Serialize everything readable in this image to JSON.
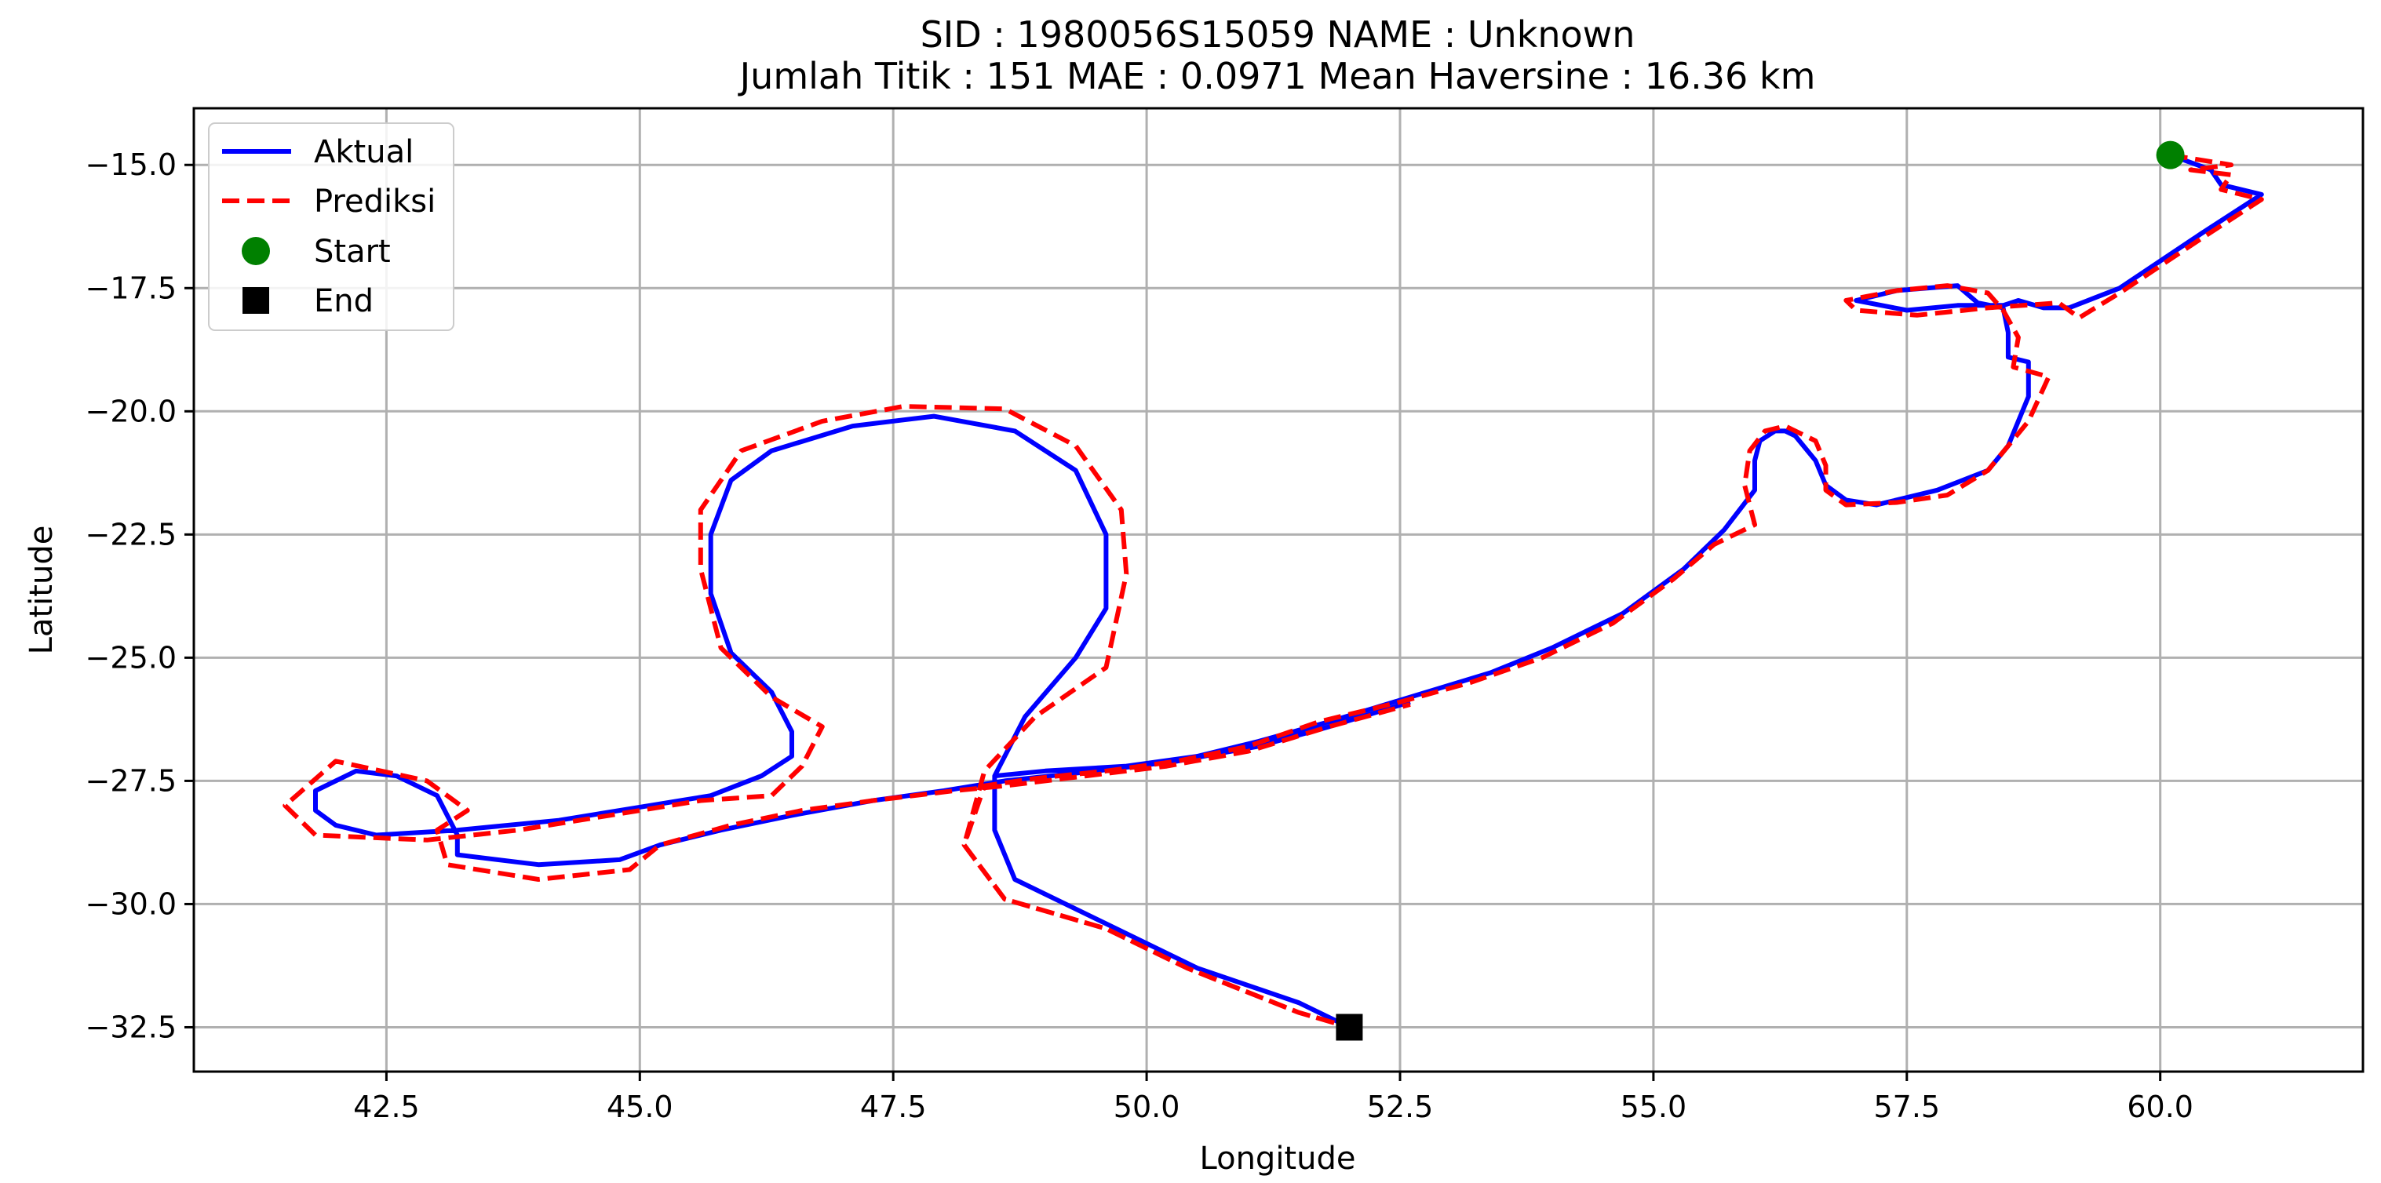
{
  "chart_data": {
    "type": "line",
    "title_line1": "SID : 1980056S15059    NAME : Unknown",
    "title_line2": "Jumlah Titik : 151    MAE : 0.0971    Mean Haversine : 16.36 km",
    "xlabel": "Longitude",
    "ylabel": "Latitude",
    "xlim": [
      40.6,
      62.0
    ],
    "ylim": [
      -33.4,
      -13.85
    ],
    "xticks": [
      42.5,
      45.0,
      47.5,
      50.0,
      52.5,
      55.0,
      57.5,
      60.0
    ],
    "xtick_labels": [
      "42.5",
      "45.0",
      "47.5",
      "50.0",
      "52.5",
      "55.0",
      "57.5",
      "60.0"
    ],
    "yticks": [
      -15.0,
      -17.5,
      -20.0,
      -22.5,
      -25.0,
      -27.5,
      -30.0,
      -32.5
    ],
    "ytick_labels": [
      "−15.0",
      "−17.5",
      "−20.0",
      "−22.5",
      "−25.0",
      "−27.5",
      "−30.0",
      "−32.5"
    ],
    "grid": true,
    "legend_position": "top-left",
    "series": [
      {
        "name": "Aktual",
        "color": "#0000ff",
        "style": "solid",
        "points": [
          [
            60.1,
            -14.8
          ],
          [
            60.5,
            -15.1
          ],
          [
            60.6,
            -15.4
          ],
          [
            61.0,
            -15.6
          ],
          [
            60.4,
            -16.4
          ],
          [
            59.6,
            -17.5
          ],
          [
            59.1,
            -17.9
          ],
          [
            58.85,
            -17.9
          ],
          [
            58.6,
            -17.75
          ],
          [
            58.45,
            -17.85
          ],
          [
            58.0,
            -17.85
          ],
          [
            57.5,
            -17.95
          ],
          [
            57.0,
            -17.75
          ],
          [
            57.4,
            -17.55
          ],
          [
            58.0,
            -17.45
          ],
          [
            58.2,
            -17.8
          ],
          [
            58.45,
            -17.9
          ],
          [
            58.5,
            -18.4
          ],
          [
            58.5,
            -18.9
          ],
          [
            58.7,
            -19.0
          ],
          [
            58.7,
            -19.7
          ],
          [
            58.5,
            -20.7
          ],
          [
            58.3,
            -21.2
          ],
          [
            57.8,
            -21.6
          ],
          [
            57.5,
            -21.75
          ],
          [
            57.2,
            -21.9
          ],
          [
            56.9,
            -21.8
          ],
          [
            56.7,
            -21.5
          ],
          [
            56.6,
            -21.0
          ],
          [
            56.4,
            -20.5
          ],
          [
            56.3,
            -20.4
          ],
          [
            56.2,
            -20.4
          ],
          [
            56.05,
            -20.6
          ],
          [
            56.0,
            -21.0
          ],
          [
            56.0,
            -21.6
          ],
          [
            55.7,
            -22.4
          ],
          [
            55.3,
            -23.2
          ],
          [
            54.7,
            -24.1
          ],
          [
            54.0,
            -24.8
          ],
          [
            53.4,
            -25.3
          ],
          [
            52.6,
            -25.8
          ],
          [
            51.8,
            -26.3
          ],
          [
            51.1,
            -26.7
          ],
          [
            50.5,
            -27.0
          ],
          [
            49.8,
            -27.2
          ],
          [
            49.0,
            -27.3
          ],
          [
            48.5,
            -27.4
          ],
          [
            48.5,
            -28.5
          ],
          [
            48.7,
            -29.5
          ],
          [
            49.8,
            -30.6
          ],
          [
            50.5,
            -31.3
          ],
          [
            51.5,
            -32.0
          ],
          [
            52.0,
            -32.5
          ],
          [
            52.0,
            -32.5
          ],
          [
            51.5,
            -32.0
          ],
          [
            50.5,
            -31.3
          ],
          [
            49.8,
            -30.6
          ],
          [
            48.7,
            -29.5
          ],
          [
            48.5,
            -28.5
          ],
          [
            48.5,
            -27.4
          ],
          [
            48.8,
            -26.2
          ],
          [
            49.3,
            -25.0
          ],
          [
            49.6,
            -24.0
          ],
          [
            49.6,
            -22.5
          ],
          [
            49.3,
            -21.2
          ],
          [
            48.7,
            -20.4
          ],
          [
            47.9,
            -20.1
          ],
          [
            47.1,
            -20.3
          ],
          [
            46.3,
            -20.8
          ],
          [
            45.9,
            -21.4
          ],
          [
            45.7,
            -22.5
          ],
          [
            45.7,
            -23.7
          ],
          [
            45.9,
            -24.9
          ],
          [
            46.3,
            -25.7
          ],
          [
            46.5,
            -26.5
          ],
          [
            46.5,
            -27.0
          ],
          [
            46.2,
            -27.4
          ],
          [
            45.7,
            -27.8
          ],
          [
            45.1,
            -28.0
          ],
          [
            44.2,
            -28.3
          ],
          [
            43.2,
            -28.5
          ],
          [
            42.4,
            -28.6
          ],
          [
            42.0,
            -28.4
          ],
          [
            41.8,
            -28.1
          ],
          [
            41.8,
            -27.7
          ],
          [
            42.2,
            -27.3
          ],
          [
            42.6,
            -27.4
          ],
          [
            43.0,
            -27.8
          ],
          [
            43.1,
            -28.2
          ],
          [
            43.2,
            -28.6
          ],
          [
            43.2,
            -29.0
          ],
          [
            44.0,
            -29.2
          ],
          [
            44.8,
            -29.1
          ],
          [
            45.2,
            -28.8
          ],
          [
            45.8,
            -28.5
          ],
          [
            46.5,
            -28.2
          ],
          [
            47.3,
            -27.9
          ],
          [
            48.0,
            -27.7
          ],
          [
            48.6,
            -27.5
          ],
          [
            49.5,
            -27.3
          ],
          [
            50.3,
            -27.1
          ],
          [
            51.1,
            -26.8
          ],
          [
            51.8,
            -26.4
          ],
          [
            52.6,
            -25.9
          ]
        ]
      },
      {
        "name": "Prediksi",
        "color": "#ff0000",
        "style": "dashed",
        "points": [
          [
            60.1,
            -14.8
          ],
          [
            60.7,
            -15.0
          ],
          [
            60.3,
            -15.1
          ],
          [
            60.7,
            -15.2
          ],
          [
            60.6,
            -15.5
          ],
          [
            61.0,
            -15.7
          ],
          [
            60.4,
            -16.5
          ],
          [
            59.6,
            -17.6
          ],
          [
            59.2,
            -18.1
          ],
          [
            59.0,
            -17.8
          ],
          [
            58.3,
            -17.9
          ],
          [
            57.6,
            -18.05
          ],
          [
            57.0,
            -17.95
          ],
          [
            56.9,
            -17.75
          ],
          [
            57.4,
            -17.55
          ],
          [
            57.9,
            -17.45
          ],
          [
            58.3,
            -17.6
          ],
          [
            58.45,
            -17.95
          ],
          [
            58.6,
            -18.5
          ],
          [
            58.55,
            -19.1
          ],
          [
            58.9,
            -19.3
          ],
          [
            58.7,
            -20.2
          ],
          [
            58.3,
            -21.2
          ],
          [
            57.9,
            -21.7
          ],
          [
            57.4,
            -21.85
          ],
          [
            56.9,
            -21.9
          ],
          [
            56.7,
            -21.6
          ],
          [
            56.7,
            -21.1
          ],
          [
            56.6,
            -20.6
          ],
          [
            56.3,
            -20.3
          ],
          [
            56.1,
            -20.4
          ],
          [
            55.95,
            -20.8
          ],
          [
            55.9,
            -21.5
          ],
          [
            56.0,
            -22.3
          ],
          [
            55.6,
            -22.7
          ],
          [
            55.2,
            -23.4
          ],
          [
            54.6,
            -24.3
          ],
          [
            53.9,
            -25.0
          ],
          [
            53.2,
            -25.5
          ],
          [
            52.5,
            -25.9
          ],
          [
            51.7,
            -26.3
          ],
          [
            51.0,
            -26.8
          ],
          [
            50.3,
            -27.1
          ],
          [
            49.6,
            -27.3
          ],
          [
            48.9,
            -27.45
          ],
          [
            48.4,
            -27.6
          ],
          [
            48.2,
            -28.8
          ],
          [
            48.6,
            -29.9
          ],
          [
            49.6,
            -30.5
          ],
          [
            50.4,
            -31.3
          ],
          [
            51.5,
            -32.2
          ],
          [
            52.0,
            -32.5
          ],
          [
            52.0,
            -32.5
          ],
          [
            51.5,
            -32.2
          ],
          [
            50.4,
            -31.3
          ],
          [
            49.6,
            -30.5
          ],
          [
            48.6,
            -29.9
          ],
          [
            48.2,
            -28.8
          ],
          [
            48.4,
            -27.3
          ],
          [
            48.9,
            -26.2
          ],
          [
            49.6,
            -25.2
          ],
          [
            49.8,
            -23.3
          ],
          [
            49.75,
            -22.0
          ],
          [
            49.3,
            -20.7
          ],
          [
            48.6,
            -19.95
          ],
          [
            47.6,
            -19.9
          ],
          [
            46.8,
            -20.2
          ],
          [
            46.0,
            -20.8
          ],
          [
            45.6,
            -22.0
          ],
          [
            45.6,
            -23.2
          ],
          [
            45.8,
            -24.8
          ],
          [
            46.3,
            -25.8
          ],
          [
            46.8,
            -26.4
          ],
          [
            46.6,
            -27.2
          ],
          [
            46.3,
            -27.8
          ],
          [
            45.6,
            -27.9
          ],
          [
            44.7,
            -28.2
          ],
          [
            43.8,
            -28.5
          ],
          [
            42.9,
            -28.7
          ],
          [
            41.8,
            -28.6
          ],
          [
            41.5,
            -28.0
          ],
          [
            42.0,
            -27.1
          ],
          [
            42.9,
            -27.5
          ],
          [
            43.3,
            -28.1
          ],
          [
            43.0,
            -28.5
          ],
          [
            43.1,
            -29.2
          ],
          [
            44.0,
            -29.5
          ],
          [
            44.9,
            -29.3
          ],
          [
            45.2,
            -28.8
          ],
          [
            45.9,
            -28.4
          ],
          [
            46.6,
            -28.1
          ],
          [
            47.3,
            -27.9
          ],
          [
            48.1,
            -27.7
          ],
          [
            48.6,
            -27.6
          ],
          [
            49.4,
            -27.4
          ],
          [
            50.2,
            -27.2
          ],
          [
            51.0,
            -26.9
          ],
          [
            51.8,
            -26.4
          ],
          [
            52.6,
            -25.95
          ]
        ]
      }
    ],
    "markers": [
      {
        "name": "Start",
        "shape": "circle",
        "color": "#008000",
        "point": [
          60.1,
          -14.8
        ]
      },
      {
        "name": "End",
        "shape": "square",
        "color": "#000000",
        "point": [
          52.0,
          -32.5
        ]
      }
    ]
  }
}
